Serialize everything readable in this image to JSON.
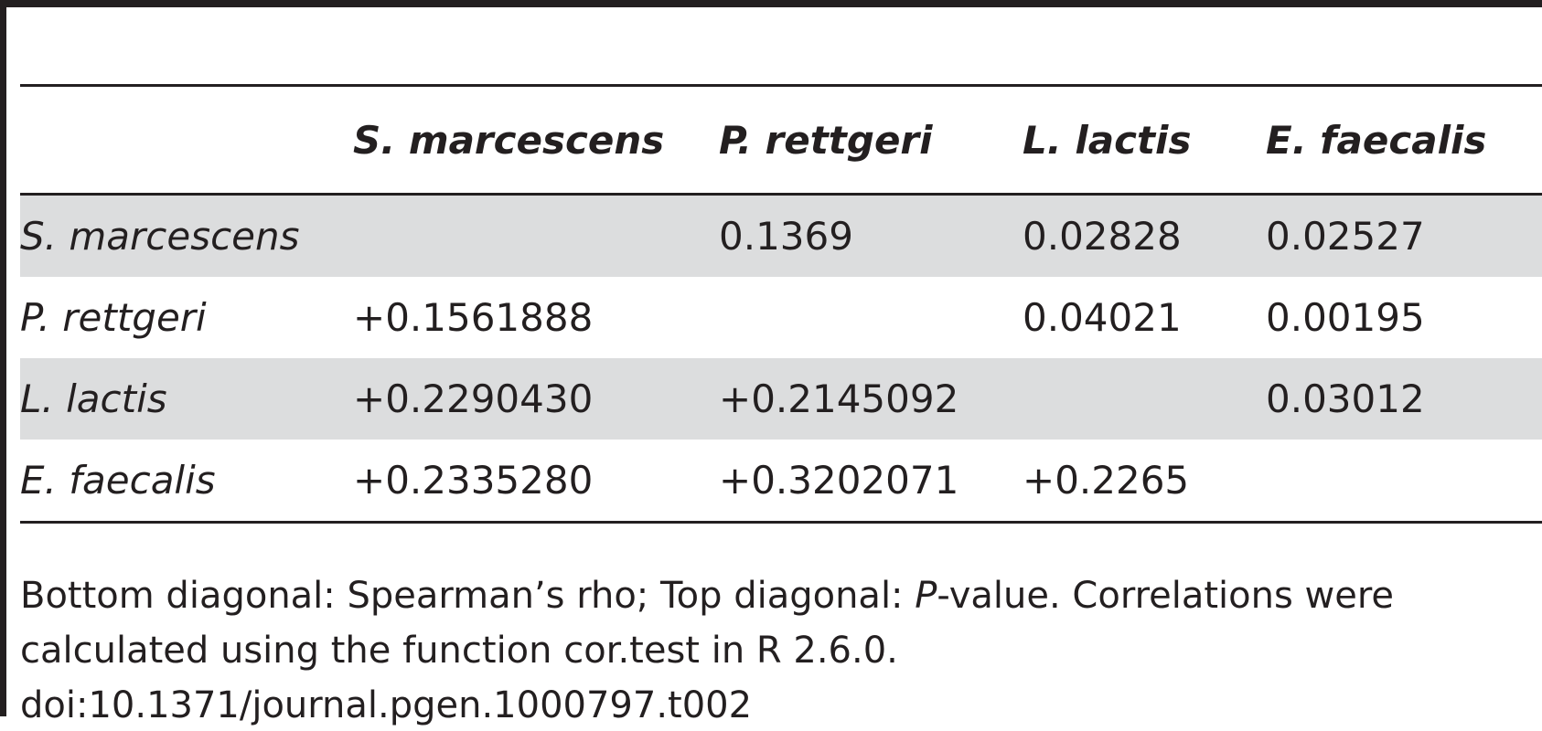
{
  "table": {
    "columns": [
      "",
      "S. marcescens",
      "P. rettgeri",
      "L. lactis",
      "E. faecalis"
    ],
    "rows": [
      {
        "label": "S. marcescens",
        "cells": [
          "",
          "0.1369",
          "0.02828",
          "0.02527"
        ],
        "shaded": true
      },
      {
        "label": "P. rettgeri",
        "cells": [
          "+0.1561888",
          "",
          "0.04021",
          "0.00195"
        ],
        "shaded": false
      },
      {
        "label": "L. lactis",
        "cells": [
          "+0.2290430",
          "+0.2145092",
          "",
          "0.03012"
        ],
        "shaded": true
      },
      {
        "label": "E. faecalis",
        "cells": [
          "+0.2335280",
          "+0.3202071",
          "+0.2265",
          ""
        ],
        "shaded": false
      }
    ]
  },
  "footnote": {
    "part1": "Bottom diagonal: Spearman’s rho; Top diagonal: ",
    "p_italic": "P",
    "part2": "-value. Correlations were calculated using the function cor.test in R 2.6.0.",
    "doi": "doi:10.1371/journal.pgen.1000797.t002"
  },
  "colors": {
    "rule": "#231f20",
    "shading": "#dcddde",
    "text": "#231f20"
  }
}
